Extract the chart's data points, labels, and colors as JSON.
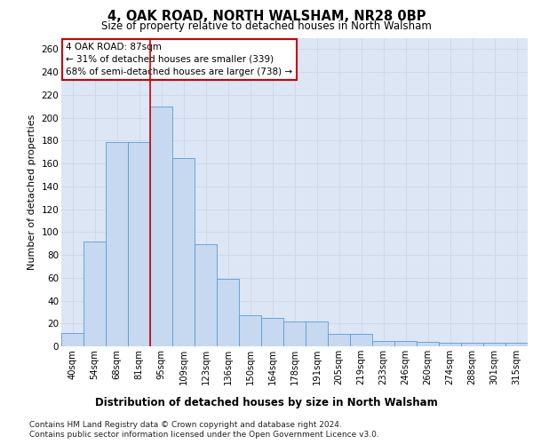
{
  "title": "4, OAK ROAD, NORTH WALSHAM, NR28 0BP",
  "subtitle": "Size of property relative to detached houses in North Walsham",
  "xlabel": "Distribution of detached houses by size in North Walsham",
  "ylabel": "Number of detached properties",
  "categories": [
    "40sqm",
    "54sqm",
    "68sqm",
    "81sqm",
    "95sqm",
    "109sqm",
    "123sqm",
    "136sqm",
    "150sqm",
    "164sqm",
    "178sqm",
    "191sqm",
    "205sqm",
    "219sqm",
    "233sqm",
    "246sqm",
    "260sqm",
    "274sqm",
    "288sqm",
    "301sqm",
    "315sqm"
  ],
  "values": [
    12,
    92,
    179,
    179,
    210,
    165,
    89,
    59,
    27,
    25,
    22,
    22,
    11,
    11,
    5,
    5,
    4,
    3,
    3,
    3,
    3
  ],
  "bar_color": "#c6d9f0",
  "bar_edge_color": "#5b9bd5",
  "vline_pos": 3.5,
  "annotation_text": "4 OAK ROAD: 87sqm\n← 31% of detached houses are smaller (339)\n68% of semi-detached houses are larger (738) →",
  "annotation_box_color": "#ffffff",
  "annotation_box_edge": "#cc0000",
  "annotation_text_color": "#000000",
  "vline_color": "#cc0000",
  "grid_color": "#d0d8e8",
  "background_color": "#dce6f5",
  "ylim": [
    0,
    270
  ],
  "yticks": [
    0,
    20,
    40,
    60,
    80,
    100,
    120,
    140,
    160,
    180,
    200,
    220,
    240,
    260
  ],
  "footer_line1": "Contains HM Land Registry data © Crown copyright and database right 2024.",
  "footer_line2": "Contains public sector information licensed under the Open Government Licence v3.0."
}
